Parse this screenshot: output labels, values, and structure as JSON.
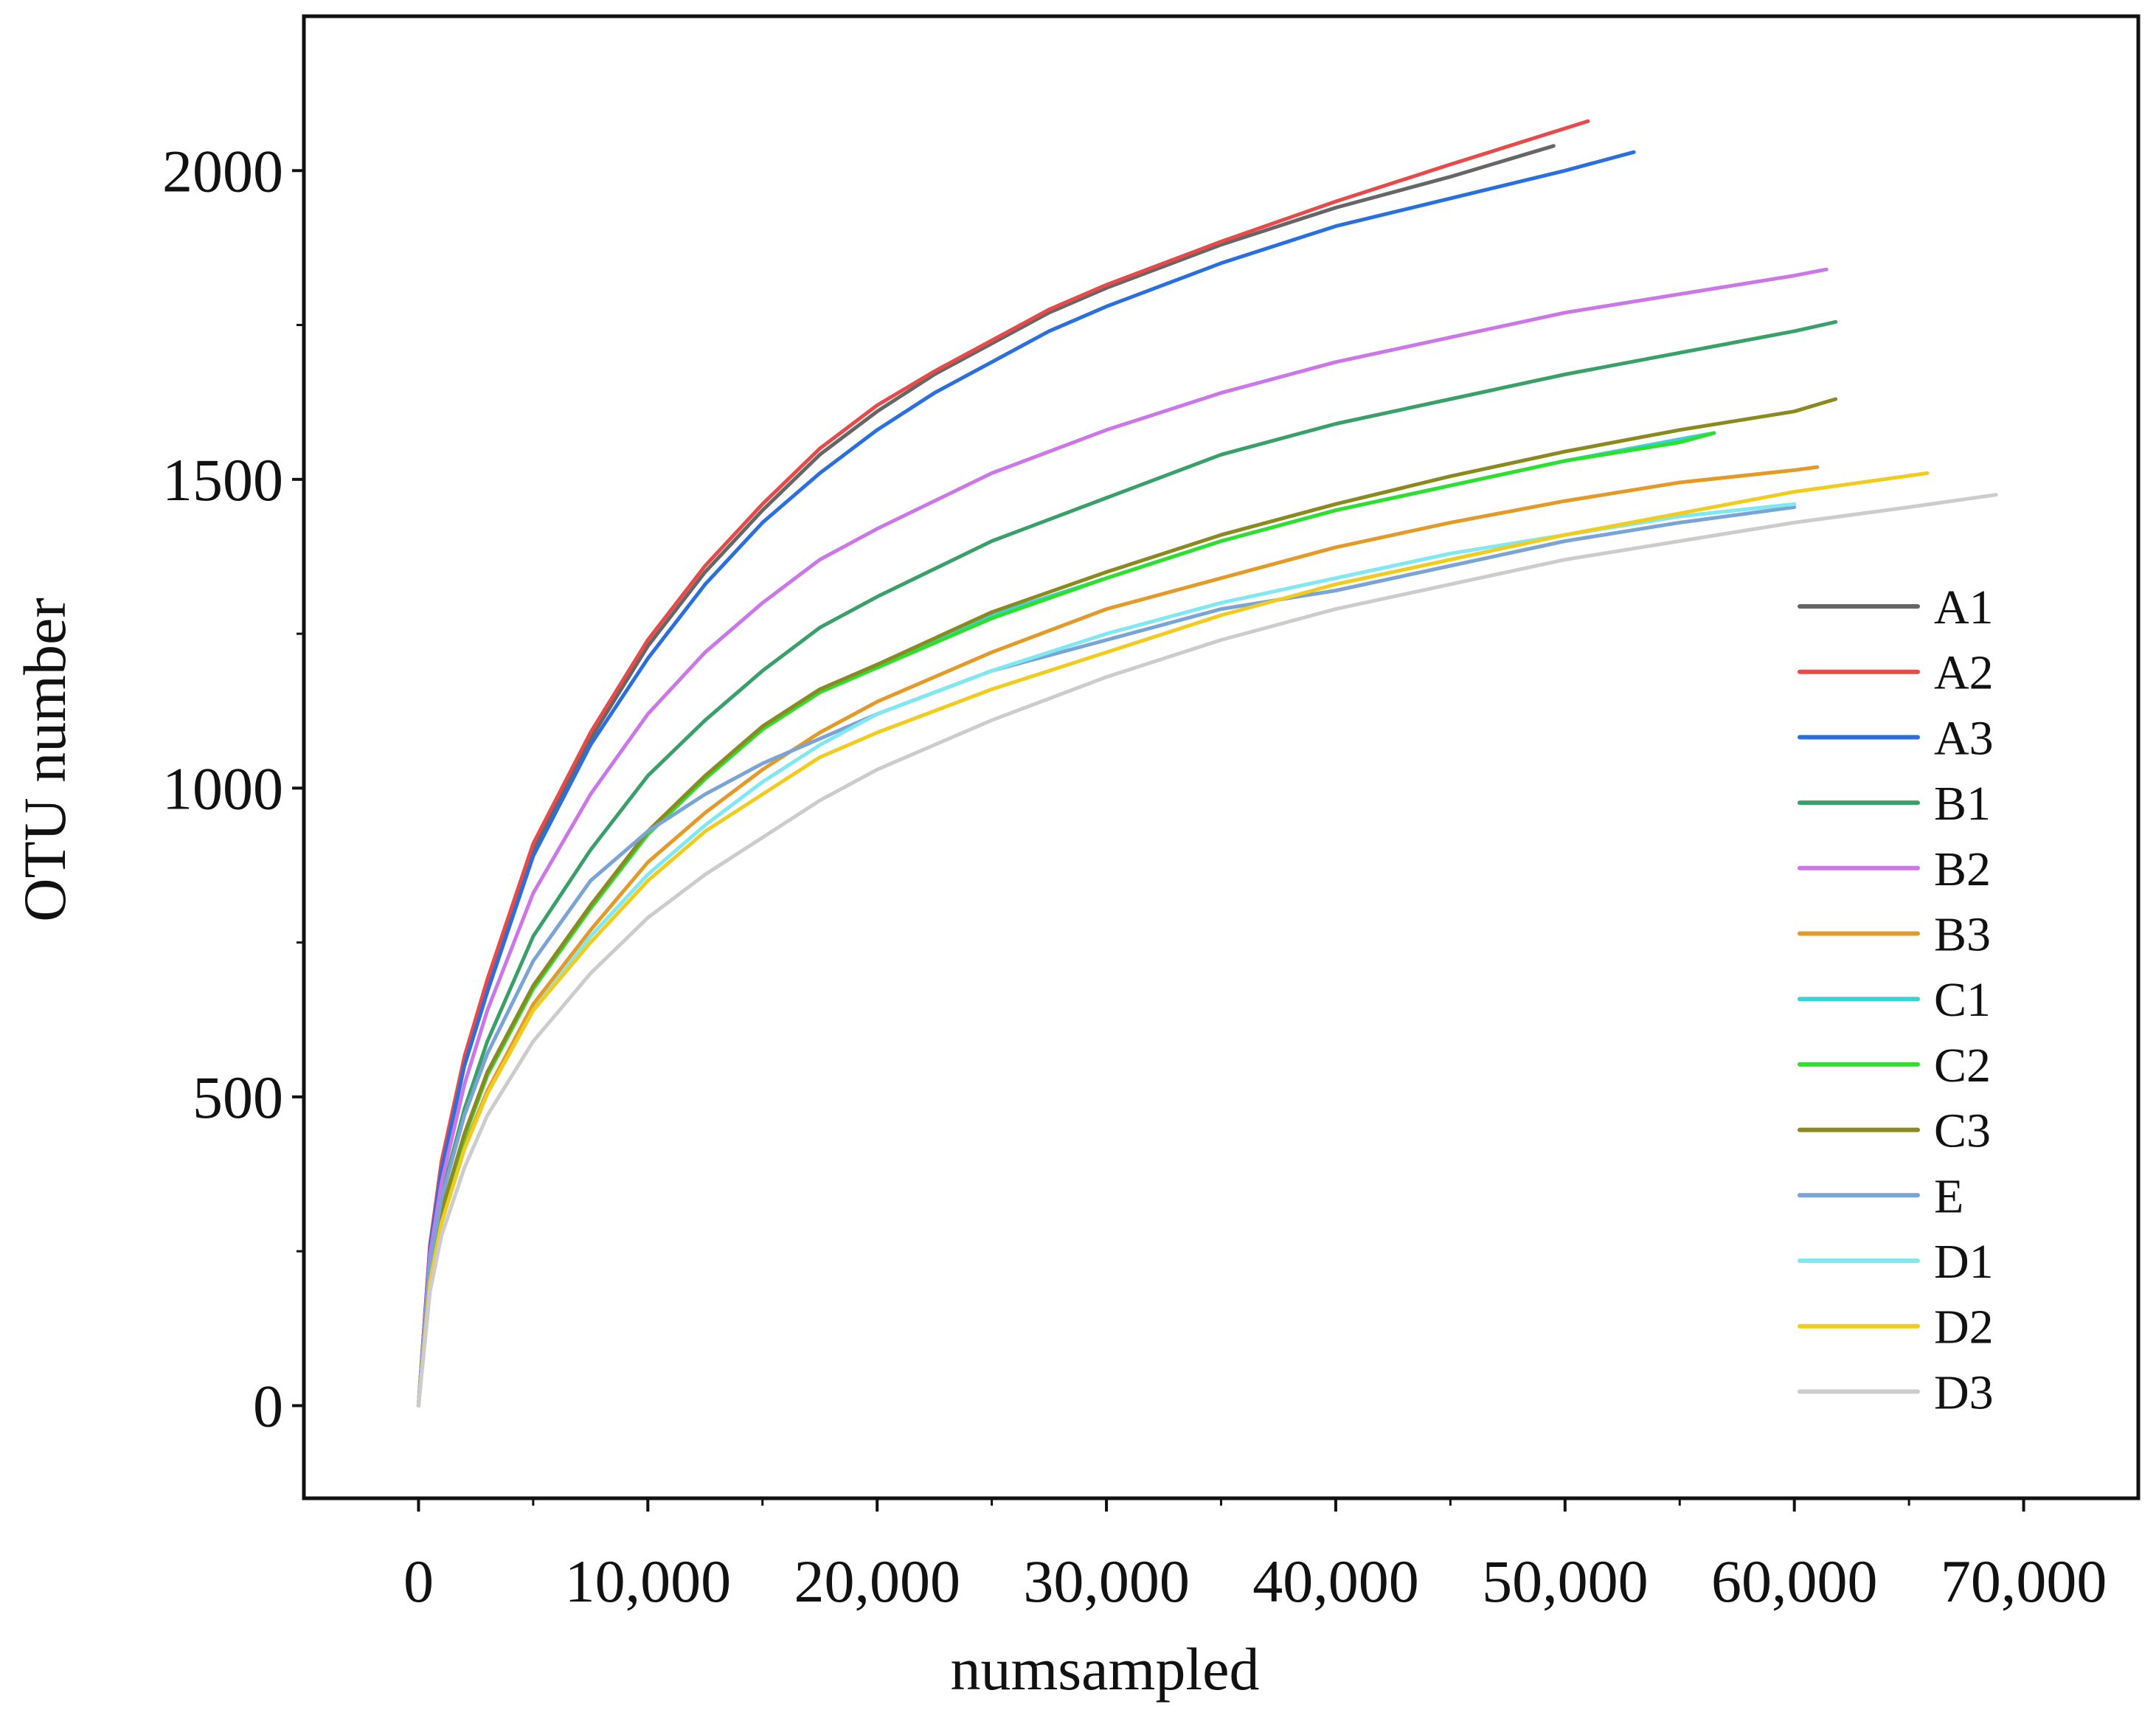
{
  "chart_data": {
    "type": "line",
    "title": "",
    "xlabel": "numsampled",
    "ylabel": "OTU number",
    "xlim": [
      -5000,
      75000
    ],
    "ylim": [
      -150,
      2250
    ],
    "x_ticks": [
      0,
      10000,
      20000,
      30000,
      40000,
      50000,
      60000,
      70000
    ],
    "x_tick_labels": [
      "0",
      "10,000",
      "20,000",
      "30,000",
      "40,000",
      "50,000",
      "60,000",
      "70,000"
    ],
    "y_ticks": [
      0,
      500,
      1000,
      1500,
      2000
    ],
    "y_tick_labels": [
      "0",
      "500",
      "1000",
      "1500",
      "2000"
    ],
    "y_minor_ticks": [
      250,
      750,
      1250,
      1750
    ],
    "grid": false,
    "legend_position": "right, lower half",
    "series": [
      {
        "name": "A1",
        "color": "#666666",
        "points": [
          [
            0,
            0
          ],
          [
            500,
            260
          ],
          [
            1000,
            390
          ],
          [
            2000,
            560
          ],
          [
            3000,
            680
          ],
          [
            5000,
            900
          ],
          [
            7500,
            1080
          ],
          [
            10000,
            1230
          ],
          [
            12500,
            1350
          ],
          [
            15000,
            1450
          ],
          [
            17500,
            1540
          ],
          [
            20000,
            1610
          ],
          [
            22500,
            1670
          ],
          [
            25000,
            1720
          ],
          [
            27500,
            1770
          ],
          [
            30000,
            1810
          ],
          [
            35000,
            1880
          ],
          [
            40000,
            1940
          ],
          [
            45000,
            1990
          ],
          [
            49500,
            2040
          ]
        ]
      },
      {
        "name": "A2",
        "color": "#e84a4a",
        "points": [
          [
            0,
            0
          ],
          [
            500,
            260
          ],
          [
            1000,
            395
          ],
          [
            2000,
            565
          ],
          [
            3000,
            690
          ],
          [
            5000,
            910
          ],
          [
            7500,
            1090
          ],
          [
            10000,
            1240
          ],
          [
            12500,
            1360
          ],
          [
            15000,
            1460
          ],
          [
            17500,
            1550
          ],
          [
            20000,
            1620
          ],
          [
            22500,
            1675
          ],
          [
            25000,
            1725
          ],
          [
            27500,
            1775
          ],
          [
            30000,
            1815
          ],
          [
            35000,
            1885
          ],
          [
            40000,
            1950
          ],
          [
            45000,
            2010
          ],
          [
            51000,
            2080
          ]
        ]
      },
      {
        "name": "A3",
        "color": "#2a6fde",
        "points": [
          [
            0,
            0
          ],
          [
            500,
            255
          ],
          [
            1000,
            380
          ],
          [
            2000,
            550
          ],
          [
            3000,
            670
          ],
          [
            5000,
            890
          ],
          [
            7500,
            1070
          ],
          [
            10000,
            1210
          ],
          [
            12500,
            1330
          ],
          [
            15000,
            1430
          ],
          [
            17500,
            1510
          ],
          [
            20000,
            1580
          ],
          [
            22500,
            1640
          ],
          [
            25000,
            1690
          ],
          [
            27500,
            1740
          ],
          [
            30000,
            1780
          ],
          [
            35000,
            1850
          ],
          [
            40000,
            1910
          ],
          [
            45000,
            1955
          ],
          [
            50000,
            2000
          ],
          [
            53000,
            2030
          ]
        ]
      },
      {
        "name": "B1",
        "color": "#3aa06a",
        "points": [
          [
            0,
            0
          ],
          [
            500,
            230
          ],
          [
            1000,
            340
          ],
          [
            2000,
            480
          ],
          [
            3000,
            590
          ],
          [
            5000,
            760
          ],
          [
            7500,
            900
          ],
          [
            10000,
            1020
          ],
          [
            12500,
            1110
          ],
          [
            15000,
            1190
          ],
          [
            17500,
            1260
          ],
          [
            20000,
            1310
          ],
          [
            25000,
            1400
          ],
          [
            30000,
            1470
          ],
          [
            35000,
            1540
          ],
          [
            40000,
            1590
          ],
          [
            45000,
            1630
          ],
          [
            50000,
            1670
          ],
          [
            55000,
            1705
          ],
          [
            60000,
            1740
          ],
          [
            61800,
            1755
          ]
        ]
      },
      {
        "name": "B2",
        "color": "#cc77e8",
        "points": [
          [
            0,
            0
          ],
          [
            500,
            245
          ],
          [
            1000,
            360
          ],
          [
            2000,
            520
          ],
          [
            3000,
            640
          ],
          [
            5000,
            830
          ],
          [
            7500,
            990
          ],
          [
            10000,
            1120
          ],
          [
            12500,
            1220
          ],
          [
            15000,
            1300
          ],
          [
            17500,
            1370
          ],
          [
            20000,
            1420
          ],
          [
            25000,
            1510
          ],
          [
            30000,
            1580
          ],
          [
            35000,
            1640
          ],
          [
            40000,
            1690
          ],
          [
            45000,
            1730
          ],
          [
            50000,
            1770
          ],
          [
            55000,
            1800
          ],
          [
            60000,
            1830
          ],
          [
            61400,
            1840
          ]
        ]
      },
      {
        "name": "B3",
        "color": "#e39a27",
        "points": [
          [
            0,
            0
          ],
          [
            500,
            205
          ],
          [
            1000,
            300
          ],
          [
            2000,
            420
          ],
          [
            3000,
            510
          ],
          [
            5000,
            650
          ],
          [
            7500,
            770
          ],
          [
            10000,
            880
          ],
          [
            12500,
            960
          ],
          [
            15000,
            1030
          ],
          [
            17500,
            1090
          ],
          [
            20000,
            1140
          ],
          [
            25000,
            1220
          ],
          [
            30000,
            1290
          ],
          [
            35000,
            1340
          ],
          [
            40000,
            1390
          ],
          [
            45000,
            1430
          ],
          [
            50000,
            1465
          ],
          [
            55000,
            1495
          ],
          [
            60000,
            1515
          ],
          [
            61000,
            1520
          ]
        ]
      },
      {
        "name": "C1",
        "color": "#3ad2d8",
        "points": [
          [
            0,
            0
          ],
          [
            500,
            215
          ],
          [
            1000,
            315
          ],
          [
            2000,
            440
          ],
          [
            3000,
            540
          ],
          [
            5000,
            680
          ],
          [
            7500,
            810
          ],
          [
            10000,
            930
          ],
          [
            12500,
            1020
          ],
          [
            15000,
            1100
          ],
          [
            17500,
            1160
          ],
          [
            20000,
            1200
          ],
          [
            25000,
            1280
          ],
          [
            30000,
            1340
          ],
          [
            35000,
            1400
          ],
          [
            40000,
            1450
          ],
          [
            45000,
            1490
          ],
          [
            50000,
            1530
          ],
          [
            55000,
            1565
          ],
          [
            56500,
            1575
          ]
        ]
      },
      {
        "name": "C2",
        "color": "#2ee02e",
        "points": [
          [
            0,
            0
          ],
          [
            500,
            210
          ],
          [
            1000,
            310
          ],
          [
            2000,
            435
          ],
          [
            3000,
            535
          ],
          [
            5000,
            675
          ],
          [
            7500,
            805
          ],
          [
            10000,
            925
          ],
          [
            12500,
            1015
          ],
          [
            15000,
            1095
          ],
          [
            17500,
            1155
          ],
          [
            20000,
            1195
          ],
          [
            25000,
            1275
          ],
          [
            30000,
            1340
          ],
          [
            35000,
            1400
          ],
          [
            40000,
            1450
          ],
          [
            45000,
            1490
          ],
          [
            50000,
            1530
          ],
          [
            55000,
            1560
          ],
          [
            56500,
            1575
          ]
        ]
      },
      {
        "name": "C3",
        "color": "#8a8a1f",
        "points": [
          [
            0,
            0
          ],
          [
            500,
            215
          ],
          [
            1000,
            315
          ],
          [
            2000,
            440
          ],
          [
            3000,
            540
          ],
          [
            5000,
            680
          ],
          [
            7500,
            810
          ],
          [
            10000,
            930
          ],
          [
            12500,
            1020
          ],
          [
            15000,
            1100
          ],
          [
            17500,
            1160
          ],
          [
            20000,
            1200
          ],
          [
            25000,
            1285
          ],
          [
            30000,
            1350
          ],
          [
            35000,
            1410
          ],
          [
            40000,
            1460
          ],
          [
            45000,
            1505
          ],
          [
            50000,
            1545
          ],
          [
            55000,
            1580
          ],
          [
            60000,
            1610
          ],
          [
            61800,
            1630
          ]
        ]
      },
      {
        "name": "E",
        "color": "#7aa3d6",
        "points": [
          [
            0,
            0
          ],
          [
            500,
            230
          ],
          [
            1000,
            335
          ],
          [
            2000,
            470
          ],
          [
            3000,
            570
          ],
          [
            5000,
            720
          ],
          [
            7500,
            850
          ],
          [
            10000,
            930
          ],
          [
            12500,
            990
          ],
          [
            15000,
            1040
          ],
          [
            17500,
            1080
          ],
          [
            20000,
            1120
          ],
          [
            25000,
            1190
          ],
          [
            30000,
            1240
          ],
          [
            35000,
            1290
          ],
          [
            40000,
            1320
          ],
          [
            45000,
            1360
          ],
          [
            50000,
            1400
          ],
          [
            55000,
            1430
          ],
          [
            60000,
            1455
          ]
        ]
      },
      {
        "name": "D1",
        "color": "#7fe8f0",
        "points": [
          [
            0,
            0
          ],
          [
            500,
            200
          ],
          [
            1000,
            295
          ],
          [
            2000,
            415
          ],
          [
            3000,
            505
          ],
          [
            5000,
            640
          ],
          [
            7500,
            760
          ],
          [
            10000,
            860
          ],
          [
            12500,
            940
          ],
          [
            15000,
            1010
          ],
          [
            17500,
            1070
          ],
          [
            20000,
            1120
          ],
          [
            25000,
            1190
          ],
          [
            30000,
            1250
          ],
          [
            35000,
            1300
          ],
          [
            40000,
            1340
          ],
          [
            45000,
            1380
          ],
          [
            50000,
            1410
          ],
          [
            55000,
            1440
          ],
          [
            60000,
            1460
          ]
        ]
      },
      {
        "name": "D2",
        "color": "#f2cc1c",
        "points": [
          [
            0,
            0
          ],
          [
            500,
            200
          ],
          [
            1000,
            295
          ],
          [
            2000,
            415
          ],
          [
            3000,
            505
          ],
          [
            5000,
            640
          ],
          [
            7500,
            750
          ],
          [
            10000,
            850
          ],
          [
            12500,
            930
          ],
          [
            15000,
            990
          ],
          [
            17500,
            1050
          ],
          [
            20000,
            1090
          ],
          [
            25000,
            1160
          ],
          [
            30000,
            1220
          ],
          [
            35000,
            1280
          ],
          [
            40000,
            1330
          ],
          [
            45000,
            1370
          ],
          [
            50000,
            1410
          ],
          [
            55000,
            1445
          ],
          [
            60000,
            1480
          ],
          [
            65800,
            1510
          ]
        ]
      },
      {
        "name": "D3",
        "color": "#cccccc",
        "points": [
          [
            0,
            0
          ],
          [
            500,
            185
          ],
          [
            1000,
            275
          ],
          [
            2000,
            385
          ],
          [
            3000,
            470
          ],
          [
            5000,
            590
          ],
          [
            7500,
            700
          ],
          [
            10000,
            790
          ],
          [
            12500,
            860
          ],
          [
            15000,
            920
          ],
          [
            17500,
            980
          ],
          [
            20000,
            1030
          ],
          [
            25000,
            1110
          ],
          [
            30000,
            1180
          ],
          [
            35000,
            1240
          ],
          [
            40000,
            1290
          ],
          [
            45000,
            1330
          ],
          [
            50000,
            1370
          ],
          [
            55000,
            1400
          ],
          [
            60000,
            1430
          ],
          [
            65000,
            1455
          ],
          [
            68800,
            1475
          ]
        ]
      }
    ]
  }
}
